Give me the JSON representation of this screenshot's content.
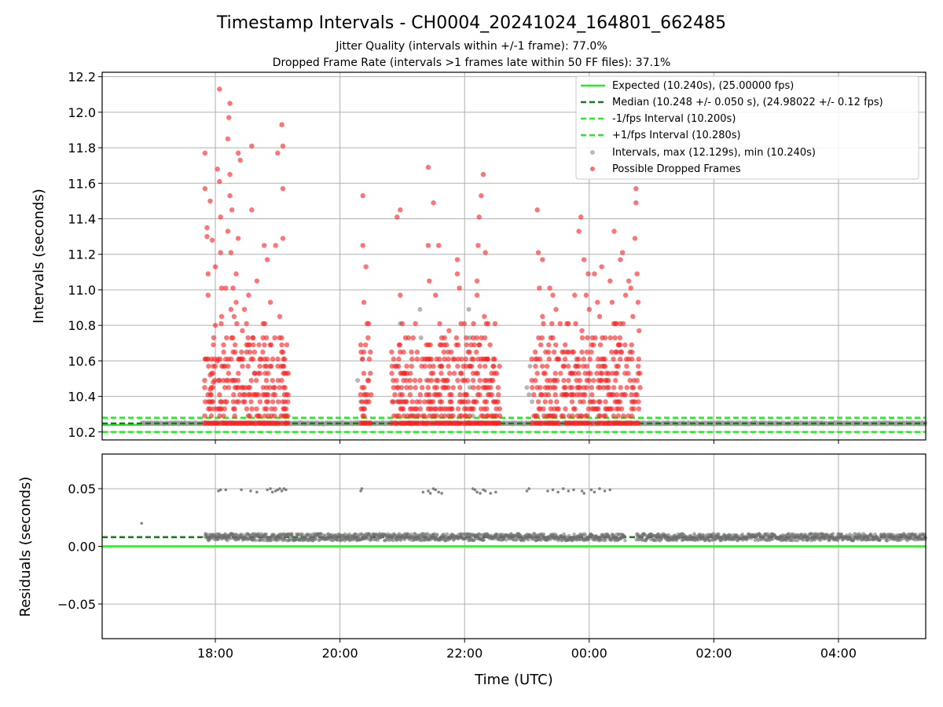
{
  "chart_data": [
    {
      "type": "scatter",
      "panel": "top",
      "title": "Timestamp Intervals - CH0004_20241024_164801_662485",
      "subtitles": [
        "Jitter Quality (intervals within +/-1 frame): 77.0%",
        "Dropped Frame Rate (intervals >1 frames late within 50 FF files): 37.1%"
      ],
      "xlabel": "",
      "ylabel": "Intervals (seconds)",
      "xlim": [
        "16:11",
        "05:24"
      ],
      "ylim": [
        10.155,
        12.225
      ],
      "yticks": [
        "10.2",
        "10.4",
        "10.6",
        "10.8",
        "11.0",
        "11.2",
        "11.4",
        "11.6",
        "11.8",
        "12.0",
        "12.2"
      ],
      "grid": true,
      "legend_position": "top-right",
      "legend": [
        "Expected (10.240s), (25.00000 fps)",
        "Median (10.248 +/- 0.050 s), (24.98022 +/- 0.12 fps)",
        "-1/fps Interval (10.200s)",
        "+1/fps Interval (10.280s)",
        "Intervals, max (12.129s), min (10.240s)",
        "Possible Dropped Frames"
      ],
      "reference_lines": {
        "expected": 10.24,
        "median": 10.248,
        "minus_one_frame": 10.2,
        "plus_one_frame": 10.28
      },
      "interval_range": {
        "start": "16:49",
        "end": "05:24"
      },
      "dropped_clusters": [
        {
          "start": "17:50",
          "end": "19:10"
        },
        {
          "start": "20:20",
          "end": "20:30"
        },
        {
          "start": "20:50",
          "end": "21:20"
        },
        {
          "start": "21:20",
          "end": "22:05"
        },
        {
          "start": "22:05",
          "end": "22:35"
        },
        {
          "start": "23:05",
          "end": "24:50"
        }
      ],
      "dropped_points": [
        [
          "17:50",
          11.77
        ],
        [
          "17:50",
          11.57
        ],
        [
          "17:52",
          11.35
        ],
        [
          "17:52",
          11.3
        ],
        [
          "17:53",
          11.09
        ],
        [
          "17:53",
          10.97
        ],
        [
          "17:53",
          10.61
        ],
        [
          "17:55",
          11.5
        ],
        [
          "17:55",
          10.52
        ],
        [
          "17:55",
          10.44
        ],
        [
          "17:57",
          11.28
        ],
        [
          "17:58",
          10.48
        ],
        [
          "18:00",
          11.13
        ],
        [
          "18:00",
          10.8
        ],
        [
          "18:02",
          11.68
        ],
        [
          "18:02",
          10.6
        ],
        [
          "18:04",
          12.13
        ],
        [
          "18:04",
          11.61
        ],
        [
          "18:05",
          11.41
        ],
        [
          "18:05",
          11.21
        ],
        [
          "18:06",
          11.01
        ],
        [
          "18:06",
          10.85
        ],
        [
          "18:08",
          10.65
        ],
        [
          "18:10",
          11.01
        ],
        [
          "18:10",
          10.61
        ],
        [
          "18:12",
          11.85
        ],
        [
          "18:12",
          11.33
        ],
        [
          "18:13",
          11.97
        ],
        [
          "18:14",
          12.05
        ],
        [
          "18:14",
          11.65
        ],
        [
          "18:14",
          11.53
        ],
        [
          "18:15",
          11.21
        ],
        [
          "18:15",
          10.89
        ],
        [
          "18:16",
          11.45
        ],
        [
          "18:17",
          11.01
        ],
        [
          "18:18",
          10.85
        ],
        [
          "18:19",
          10.69
        ],
        [
          "18:20",
          11.09
        ],
        [
          "18:20",
          10.93
        ],
        [
          "18:22",
          11.77
        ],
        [
          "18:22",
          11.29
        ],
        [
          "18:23",
          10.61
        ],
        [
          "18:24",
          11.73
        ],
        [
          "18:26",
          10.77
        ],
        [
          "18:26",
          10.57
        ],
        [
          "18:28",
          10.89
        ],
        [
          "18:30",
          10.65
        ],
        [
          "18:32",
          10.97
        ],
        [
          "18:35",
          11.81
        ],
        [
          "18:35",
          11.45
        ],
        [
          "18:36",
          10.73
        ],
        [
          "18:38",
          10.53
        ],
        [
          "18:40",
          11.05
        ],
        [
          "18:42",
          10.69
        ],
        [
          "18:43",
          10.37
        ],
        [
          "18:46",
          10.81
        ],
        [
          "18:47",
          11.25
        ],
        [
          "18:50",
          11.17
        ],
        [
          "18:50",
          10.61
        ],
        [
          "18:53",
          10.93
        ],
        [
          "18:55",
          10.49
        ],
        [
          "18:58",
          11.25
        ],
        [
          "19:00",
          11.77
        ],
        [
          "19:02",
          10.85
        ],
        [
          "19:04",
          11.93
        ],
        [
          "19:05",
          11.81
        ],
        [
          "19:05",
          11.57
        ],
        [
          "19:05",
          11.29
        ],
        [
          "19:06",
          10.57
        ],
        [
          "19:08",
          10.33
        ],
        [
          "20:22",
          11.53
        ],
        [
          "20:22",
          11.25
        ],
        [
          "20:23",
          10.93
        ],
        [
          "20:25",
          11.13
        ],
        [
          "20:26",
          10.81
        ],
        [
          "20:27",
          10.73
        ],
        [
          "20:55",
          11.41
        ],
        [
          "20:57",
          10.69
        ],
        [
          "20:58",
          11.45
        ],
        [
          "20:58",
          10.97
        ],
        [
          "21:00",
          10.81
        ],
        [
          "21:00",
          10.41
        ],
        [
          "21:02",
          10.53
        ],
        [
          "21:07",
          10.25
        ],
        [
          "21:25",
          11.69
        ],
        [
          "21:25",
          11.25
        ],
        [
          "21:26",
          11.05
        ],
        [
          "21:27",
          10.69
        ],
        [
          "21:28",
          10.49
        ],
        [
          "21:30",
          11.49
        ],
        [
          "21:32",
          10.97
        ],
        [
          "21:35",
          11.25
        ],
        [
          "21:36",
          10.81
        ],
        [
          "21:38",
          10.57
        ],
        [
          "21:40",
          10.65
        ],
        [
          "21:42",
          10.45
        ],
        [
          "21:45",
          10.77
        ],
        [
          "21:48",
          10.33
        ],
        [
          "21:53",
          11.17
        ],
        [
          "21:53",
          11.09
        ],
        [
          "21:55",
          11.01
        ],
        [
          "21:56",
          10.53
        ],
        [
          "22:02",
          10.41
        ],
        [
          "22:12",
          11.05
        ],
        [
          "22:12",
          10.97
        ],
        [
          "22:13",
          11.25
        ],
        [
          "22:14",
          11.41
        ],
        [
          "22:14",
          10.69
        ],
        [
          "22:16",
          11.53
        ],
        [
          "22:18",
          11.65
        ],
        [
          "22:19",
          10.85
        ],
        [
          "22:20",
          11.21
        ],
        [
          "22:22",
          10.61
        ],
        [
          "22:25",
          10.45
        ],
        [
          "22:28",
          10.57
        ],
        [
          "22:30",
          10.25
        ],
        [
          "23:10",
          11.45
        ],
        [
          "23:11",
          11.21
        ],
        [
          "23:12",
          11.01
        ],
        [
          "23:15",
          11.17
        ],
        [
          "23:15",
          10.85
        ],
        [
          "23:18",
          10.65
        ],
        [
          "23:20",
          10.45
        ],
        [
          "23:22",
          11.01
        ],
        [
          "23:25",
          10.97
        ],
        [
          "23:25",
          10.73
        ],
        [
          "23:28",
          10.89
        ],
        [
          "23:30",
          10.61
        ],
        [
          "23:32",
          10.81
        ],
        [
          "23:35",
          10.57
        ],
        [
          "23:38",
          10.41
        ],
        [
          "23:40",
          10.65
        ],
        [
          "23:43",
          10.53
        ],
        [
          "23:46",
          10.97
        ],
        [
          "23:50",
          11.33
        ],
        [
          "23:52",
          11.41
        ],
        [
          "23:53",
          10.77
        ],
        [
          "23:55",
          11.17
        ],
        [
          "23:57",
          10.97
        ],
        [
          "23:59",
          11.09
        ],
        [
          "24:00",
          10.89
        ],
        [
          "24:02",
          10.65
        ],
        [
          "24:05",
          11.09
        ],
        [
          "24:08",
          10.93
        ],
        [
          "24:10",
          10.85
        ],
        [
          "24:12",
          11.13
        ],
        [
          "24:15",
          10.61
        ],
        [
          "24:17",
          10.45
        ],
        [
          "24:20",
          11.05
        ],
        [
          "24:22",
          10.93
        ],
        [
          "24:24",
          11.33
        ],
        [
          "24:25",
          10.81
        ],
        [
          "24:28",
          10.69
        ],
        [
          "24:30",
          11.17
        ],
        [
          "24:32",
          11.21
        ],
        [
          "24:35",
          10.97
        ],
        [
          "24:36",
          10.57
        ],
        [
          "24:38",
          11.05
        ],
        [
          "24:40",
          11.01
        ],
        [
          "24:42",
          10.85
        ],
        [
          "24:44",
          11.29
        ],
        [
          "24:45",
          11.57
        ],
        [
          "24:45",
          11.49
        ],
        [
          "24:46",
          11.09
        ],
        [
          "24:47",
          10.93
        ],
        [
          "24:48",
          10.77
        ]
      ],
      "grey_points": [
        [
          "17:50",
          10.61
        ],
        [
          "20:17",
          10.49
        ],
        [
          "20:20",
          10.37
        ],
        [
          "20:22",
          10.61
        ],
        [
          "20:23",
          10.33
        ],
        [
          "20:55",
          10.37
        ],
        [
          "20:58",
          10.81
        ],
        [
          "21:17",
          10.89
        ],
        [
          "21:18",
          10.73
        ],
        [
          "21:23",
          10.49
        ],
        [
          "21:25",
          10.41
        ],
        [
          "22:04",
          10.89
        ],
        [
          "22:05",
          10.73
        ],
        [
          "22:05",
          10.45
        ],
        [
          "22:07",
          10.33
        ],
        [
          "22:08",
          10.29
        ],
        [
          "23:00",
          10.45
        ],
        [
          "23:02",
          10.41
        ],
        [
          "23:03",
          10.57
        ],
        [
          "23:05",
          10.37
        ]
      ]
    },
    {
      "type": "scatter",
      "panel": "bottom",
      "xlabel": "Time (UTC)",
      "ylabel": "Residuals (seconds)",
      "xlim": [
        "16:11",
        "05:24"
      ],
      "ylim": [
        -0.08,
        0.08
      ],
      "yticks": [
        "−0.05",
        "0.00",
        "0.05"
      ],
      "xticks": [
        "18:00",
        "20:00",
        "22:00",
        "00:00",
        "02:00",
        "04:00"
      ],
      "grid": true,
      "reference_lines": {
        "expected": 0.0,
        "median": 0.008
      },
      "outliers": [
        [
          "16:49",
          0.02
        ],
        [
          "18:03",
          0.048
        ],
        [
          "18:05",
          0.049
        ],
        [
          "18:10",
          0.049
        ],
        [
          "18:25",
          0.049
        ],
        [
          "18:34",
          0.048
        ],
        [
          "18:40",
          0.047
        ],
        [
          "18:50",
          0.049
        ],
        [
          "18:53",
          0.05
        ],
        [
          "18:55",
          0.047
        ],
        [
          "18:58",
          0.048
        ],
        [
          "19:00",
          0.049
        ],
        [
          "19:02",
          0.05
        ],
        [
          "19:04",
          0.048
        ],
        [
          "19:06",
          0.05
        ],
        [
          "19:08",
          0.049
        ],
        [
          "20:20",
          0.048
        ],
        [
          "20:21",
          0.05
        ],
        [
          "21:20",
          0.047
        ],
        [
          "21:25",
          0.048
        ],
        [
          "21:27",
          0.046
        ],
        [
          "21:30",
          0.05
        ],
        [
          "21:32",
          0.049
        ],
        [
          "21:35",
          0.047
        ],
        [
          "21:38",
          0.046
        ],
        [
          "22:08",
          0.05
        ],
        [
          "22:10",
          0.049
        ],
        [
          "22:12",
          0.047
        ],
        [
          "22:15",
          0.046
        ],
        [
          "22:18",
          0.049
        ],
        [
          "22:20",
          0.048
        ],
        [
          "22:25",
          0.046
        ],
        [
          "22:30",
          0.047
        ],
        [
          "23:00",
          0.048
        ],
        [
          "23:02",
          0.05
        ],
        [
          "23:20",
          0.048
        ],
        [
          "23:25",
          0.049
        ],
        [
          "23:30",
          0.047
        ],
        [
          "23:35",
          0.05
        ],
        [
          "23:40",
          0.048
        ],
        [
          "23:45",
          0.049
        ],
        [
          "23:53",
          0.048
        ],
        [
          "23:55",
          0.046
        ],
        [
          "24:02",
          0.049
        ],
        [
          "24:05",
          0.047
        ],
        [
          "24:10",
          0.05
        ],
        [
          "24:15",
          0.048
        ],
        [
          "24:20",
          0.049
        ]
      ],
      "baseline_range": [
        0.005,
        0.011
      ],
      "baseline_start": "17:50",
      "baseline_gap": [
        "24:35",
        "24:45"
      ]
    }
  ],
  "colors": {
    "expected": "#22ee22",
    "median": "#1b7a1b",
    "interval_band": "#22ee22",
    "dropped_points": "#ff2020",
    "grey_points": "#9e9e9e",
    "residual_points": "#6e6e6e"
  }
}
